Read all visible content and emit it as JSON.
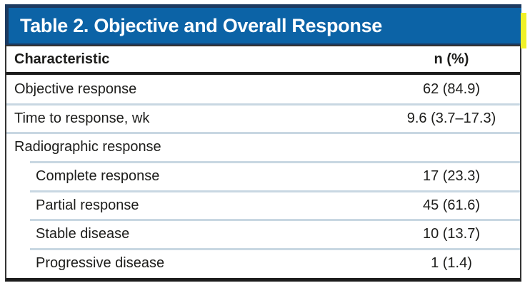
{
  "table": {
    "title": "Table 2. Objective and Overall Response",
    "columns": {
      "characteristic": "Characteristic",
      "value": "n (%)"
    },
    "rows": [
      {
        "label": "Objective response",
        "value": "62 (84.9)",
        "indent": false
      },
      {
        "label": "Time to response, wk",
        "value": "9.6 (3.7–17.3)",
        "indent": false
      },
      {
        "label": "Radiographic response",
        "value": "",
        "indent": false
      },
      {
        "label": "Complete response",
        "value": "17 (23.3)",
        "indent": true
      },
      {
        "label": "Partial response",
        "value": "45 (61.6)",
        "indent": true
      },
      {
        "label": "Stable disease",
        "value": "10 (13.7)",
        "indent": true
      },
      {
        "label": "Progressive disease",
        "value": "1 (1.4)",
        "indent": true
      }
    ]
  },
  "colors": {
    "header_blue": "#0c63a6",
    "header_border_navy": "#1c3a60",
    "accent_yellow": "#f0f127",
    "rule_black": "#1c1c1c",
    "row_separator_blue": "#c8d7e2",
    "text": "#1d1d1b",
    "background": "#ffffff"
  }
}
